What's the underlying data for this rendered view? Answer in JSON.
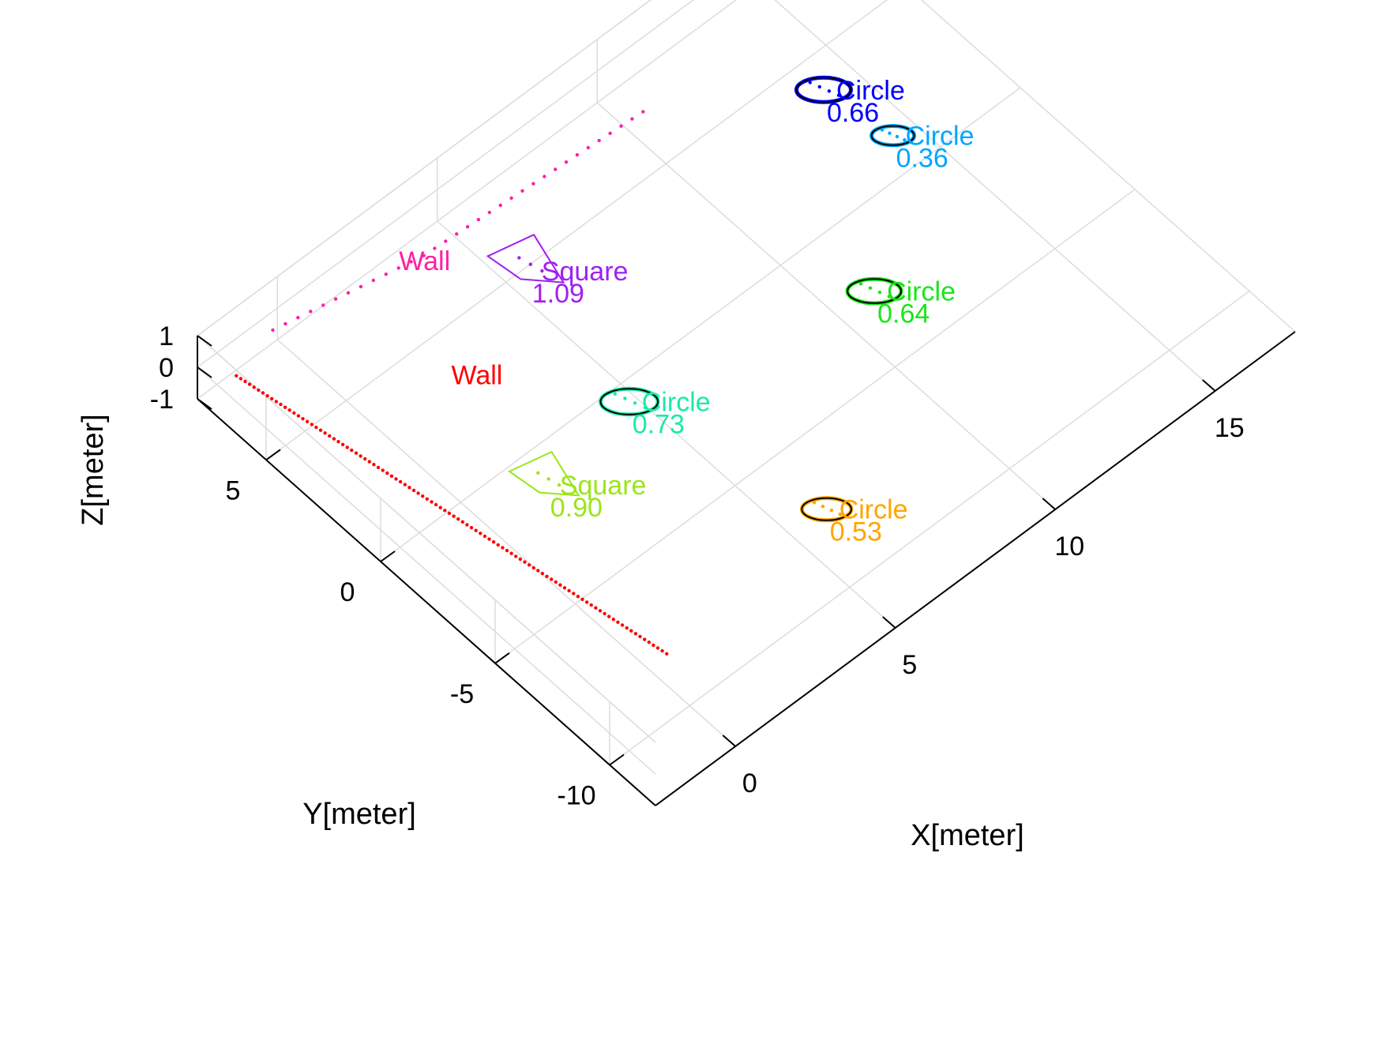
{
  "chart_data": {
    "type": "scatter3d",
    "xlabel": "X[meter]",
    "ylabel": "Y[meter]",
    "zlabel": "Z[meter]",
    "xlim": [
      -2.5,
      17.5
    ],
    "ylim": [
      -12,
      8
    ],
    "zlim": [
      -1,
      1
    ],
    "x_ticks": [
      "0",
      "5",
      "10",
      "15"
    ],
    "y_ticks": [
      "-10",
      "-5",
      "0",
      "5"
    ],
    "z_ticks": [
      "-1",
      "0",
      "1"
    ],
    "grid": true,
    "walls": [
      {
        "name": "Wall",
        "color": "#ff0000",
        "points": [
          [
            0,
            -9
          ],
          [
            -2,
            7
          ]
        ],
        "label_x": 1.5,
        "label_y": 2.5
      },
      {
        "name": "Wall",
        "color": "#ff1fa5",
        "points": [
          [
            -0.5,
            7.5
          ],
          [
            3.5,
            6.5
          ],
          [
            10,
            6
          ]
        ],
        "label_x": 2.8,
        "label_y": 6.6
      }
    ],
    "objects": [
      {
        "shape": "Circle",
        "score": "0.66",
        "x": 13.5,
        "y": 3.0,
        "color": "#0000ff"
      },
      {
        "shape": "Square",
        "score": "1.09",
        "x": 5.0,
        "y": 4.0,
        "color": "#a020f0"
      },
      {
        "shape": "Circle",
        "score": "0.36",
        "x": 13.8,
        "y": 0.4,
        "color": "#00a6ff"
      },
      {
        "shape": "Circle",
        "score": "0.73",
        "x": 4.2,
        "y": -1.5,
        "color": "#1de9a8"
      },
      {
        "shape": "Circle",
        "score": "0.64",
        "x": 10.5,
        "y": -3.4,
        "color": "#19e619"
      },
      {
        "shape": "Square",
        "score": "0.90",
        "x": 1.2,
        "y": -2.1,
        "color": "#99e619"
      },
      {
        "shape": "Circle",
        "score": "0.53",
        "x": 5.5,
        "y": -8.3,
        "color": "#ffa500"
      }
    ]
  }
}
